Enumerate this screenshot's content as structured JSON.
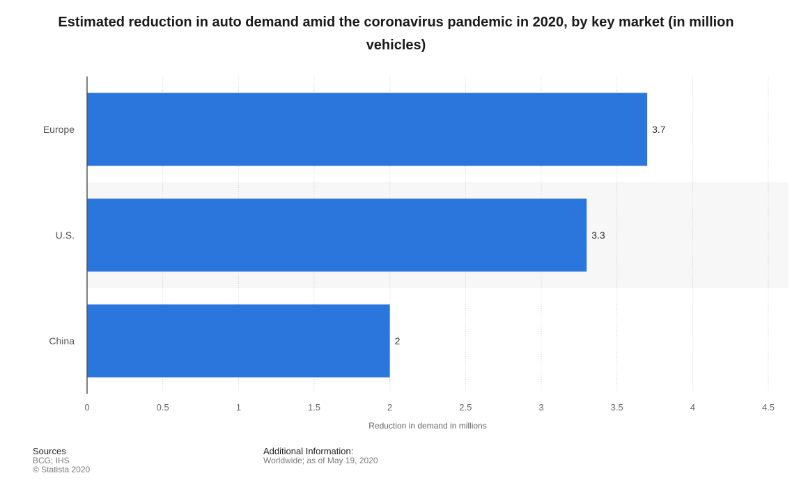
{
  "chart_data": {
    "type": "bar",
    "orientation": "horizontal",
    "title": "Estimated reduction in auto demand amid the coronavirus pandemic in 2020, by key market (in million vehicles)",
    "categories": [
      "Europe",
      "U.S.",
      "China"
    ],
    "values": [
      3.7,
      3.3,
      2
    ],
    "data_labels": [
      "3.7",
      "3.3",
      "2"
    ],
    "xlabel": "Reduction in demand in millions",
    "ylabel": "",
    "xlim": [
      0,
      4.5
    ],
    "x_ticks": [
      0,
      0.5,
      1,
      1.5,
      2,
      2.5,
      3,
      3.5,
      4,
      4.5
    ],
    "x_tick_labels": [
      "0",
      "0.5",
      "1",
      "1.5",
      "2",
      "2.5",
      "3",
      "3.5",
      "4",
      "4.5"
    ],
    "grid": true,
    "bar_color": "#2a76dd",
    "band_color": "#f7f7f7"
  },
  "footer": {
    "sources_heading": "Sources",
    "sources_line1": "BCG; IHS",
    "sources_line2": "© Statista 2020",
    "info_heading": "Additional Information:",
    "info_line1": "Worldwide; as of May 19, 2020"
  }
}
